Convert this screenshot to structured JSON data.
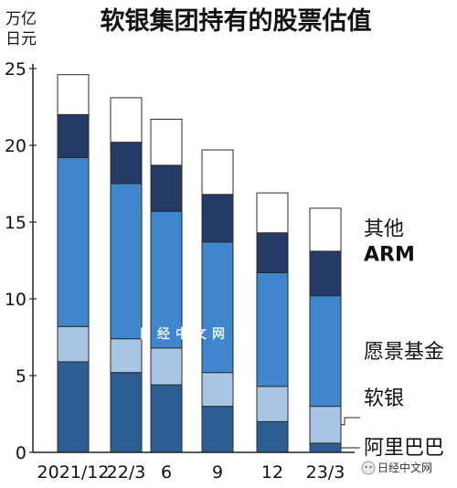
{
  "title": "软银集团持有的股票估值",
  "unit_line1": "万亿",
  "unit_line2": "日元",
  "watermark": "日经中文网",
  "source_label": "日经中文网",
  "colors": {
    "alibaba": "#2d5e93",
    "softbank": "#a9c5e6",
    "vision_fund": "#3f86cc",
    "arm": "#253a66",
    "other": "#ffffff",
    "bar_border": "#2b2b2b",
    "axis": "#222222"
  },
  "chart_data": {
    "type": "bar",
    "stacked": true,
    "title": "软银集团持有的股票估值",
    "ylabel": "万亿日元",
    "xlabel": "",
    "categories": [
      "2021/12",
      "22/3",
      "6",
      "9",
      "12",
      "23/3"
    ],
    "ylim": [
      0,
      25
    ],
    "yticks": [
      0,
      5,
      10,
      15,
      20,
      25
    ],
    "grid": false,
    "legend_placement": "right, labels beside last bar",
    "series": [
      {
        "name": "阿里巴巴",
        "key": "alibaba",
        "values": [
          5.9,
          5.2,
          4.4,
          3.0,
          2.0,
          0.6
        ]
      },
      {
        "name": "软银",
        "key": "softbank",
        "values": [
          2.3,
          2.2,
          2.4,
          2.2,
          2.3,
          2.4
        ]
      },
      {
        "name": "愿景基金",
        "key": "vision_fund",
        "values": [
          11.0,
          10.1,
          8.9,
          8.5,
          7.4,
          7.2
        ]
      },
      {
        "name": "ARM",
        "key": "arm",
        "values": [
          2.8,
          2.7,
          3.0,
          3.1,
          2.6,
          2.9
        ]
      },
      {
        "name": "其他",
        "key": "other",
        "values": [
          2.6,
          2.9,
          3.0,
          2.9,
          2.6,
          2.8
        ]
      }
    ]
  }
}
